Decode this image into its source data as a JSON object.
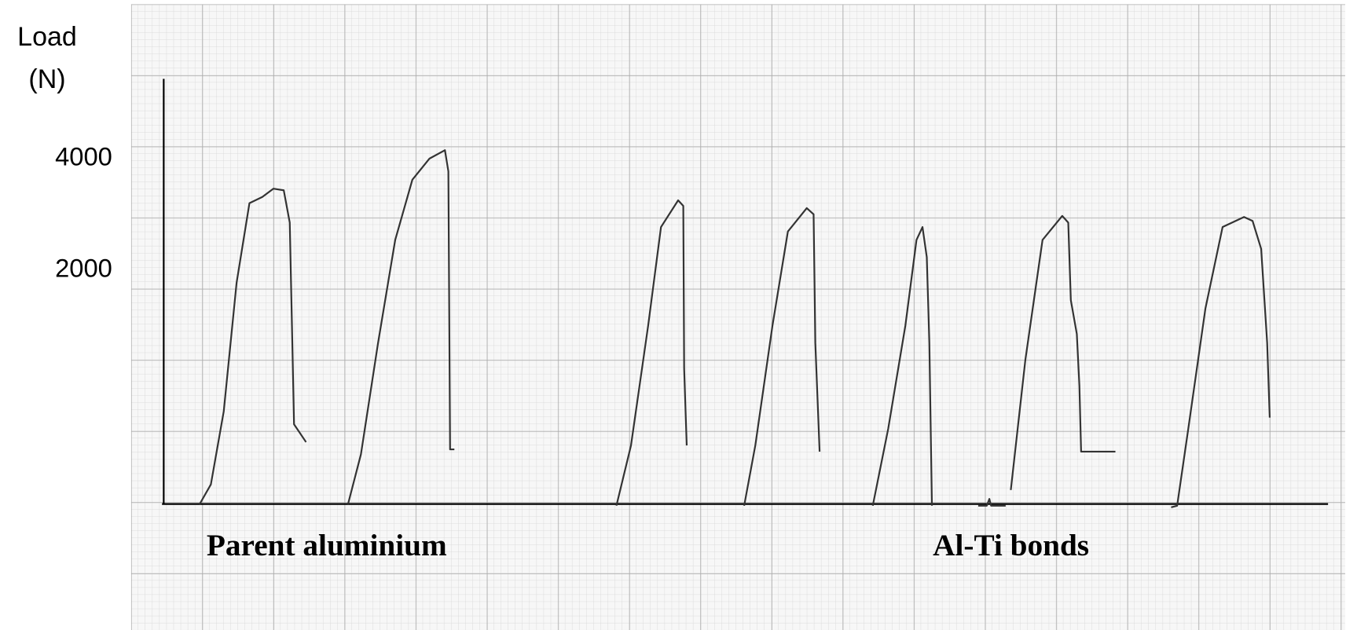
{
  "chart_data": {
    "type": "line",
    "y_label": "Load (N)",
    "annotations": [
      "Parent aluminium",
      "Al-Ti bonds"
    ],
    "ylim": [
      -2200,
      5430
    ],
    "yticks": [
      4000,
      2000
    ],
    "xlim": [
      0,
      1358
    ],
    "color": "#333333",
    "series": [
      {
        "x": [
          42,
          55,
          70,
          85,
          100,
          115,
          128,
          140,
          147,
          150,
          152,
          166
        ],
        "values": [
          -2200,
          -1850,
          -540,
          1770,
          3200,
          3310,
          3460,
          3430,
          2850,
          690,
          -770,
          -1090
        ]
      },
      {
        "x": [
          215,
          230,
          250,
          270,
          290,
          310,
          328,
          332,
          334,
          339
        ],
        "values": [
          -2200,
          -1310,
          690,
          2540,
          3620,
          4000,
          4150,
          3770,
          -1220,
          -1220
        ]
      },
      {
        "x": [
          528,
          545,
          565,
          580,
          600,
          606,
          607,
          610
        ],
        "values": [
          -2230,
          -1150,
          1000,
          2770,
          3250,
          3150,
          230,
          -1150
        ]
      },
      {
        "x": [
          677,
          690,
          710,
          728,
          750,
          758,
          760,
          765
        ],
        "values": [
          -2230,
          -1150,
          1000,
          2690,
          3110,
          3000,
          690,
          -1260
        ]
      },
      {
        "x": [
          827,
          845,
          865,
          878,
          885,
          890,
          893,
          896
        ],
        "values": [
          -2230,
          -850,
          1000,
          2540,
          2770,
          2230,
          690,
          -2230
        ]
      },
      {
        "x": [
          950,
          960,
          963,
          965,
          982,
          null,
          988,
          1005,
          1025,
          1048,
          1055,
          1058,
          1065,
          1068,
          1070,
          1110
        ],
        "values": [
          -2230,
          -2230,
          -2110,
          -2230,
          -2230,
          null,
          -1950,
          390,
          2540,
          2970,
          2850,
          1460,
          850,
          -80,
          -1260,
          -1260
        ]
      },
      {
        "x": [
          1175,
          1182,
          1195,
          1215,
          1235,
          1260,
          1270,
          1280,
          1287,
          1290
        ],
        "values": [
          -2260,
          -2230,
          -850,
          1310,
          2770,
          2950,
          2880,
          2380,
          690,
          -650
        ]
      }
    ]
  }
}
